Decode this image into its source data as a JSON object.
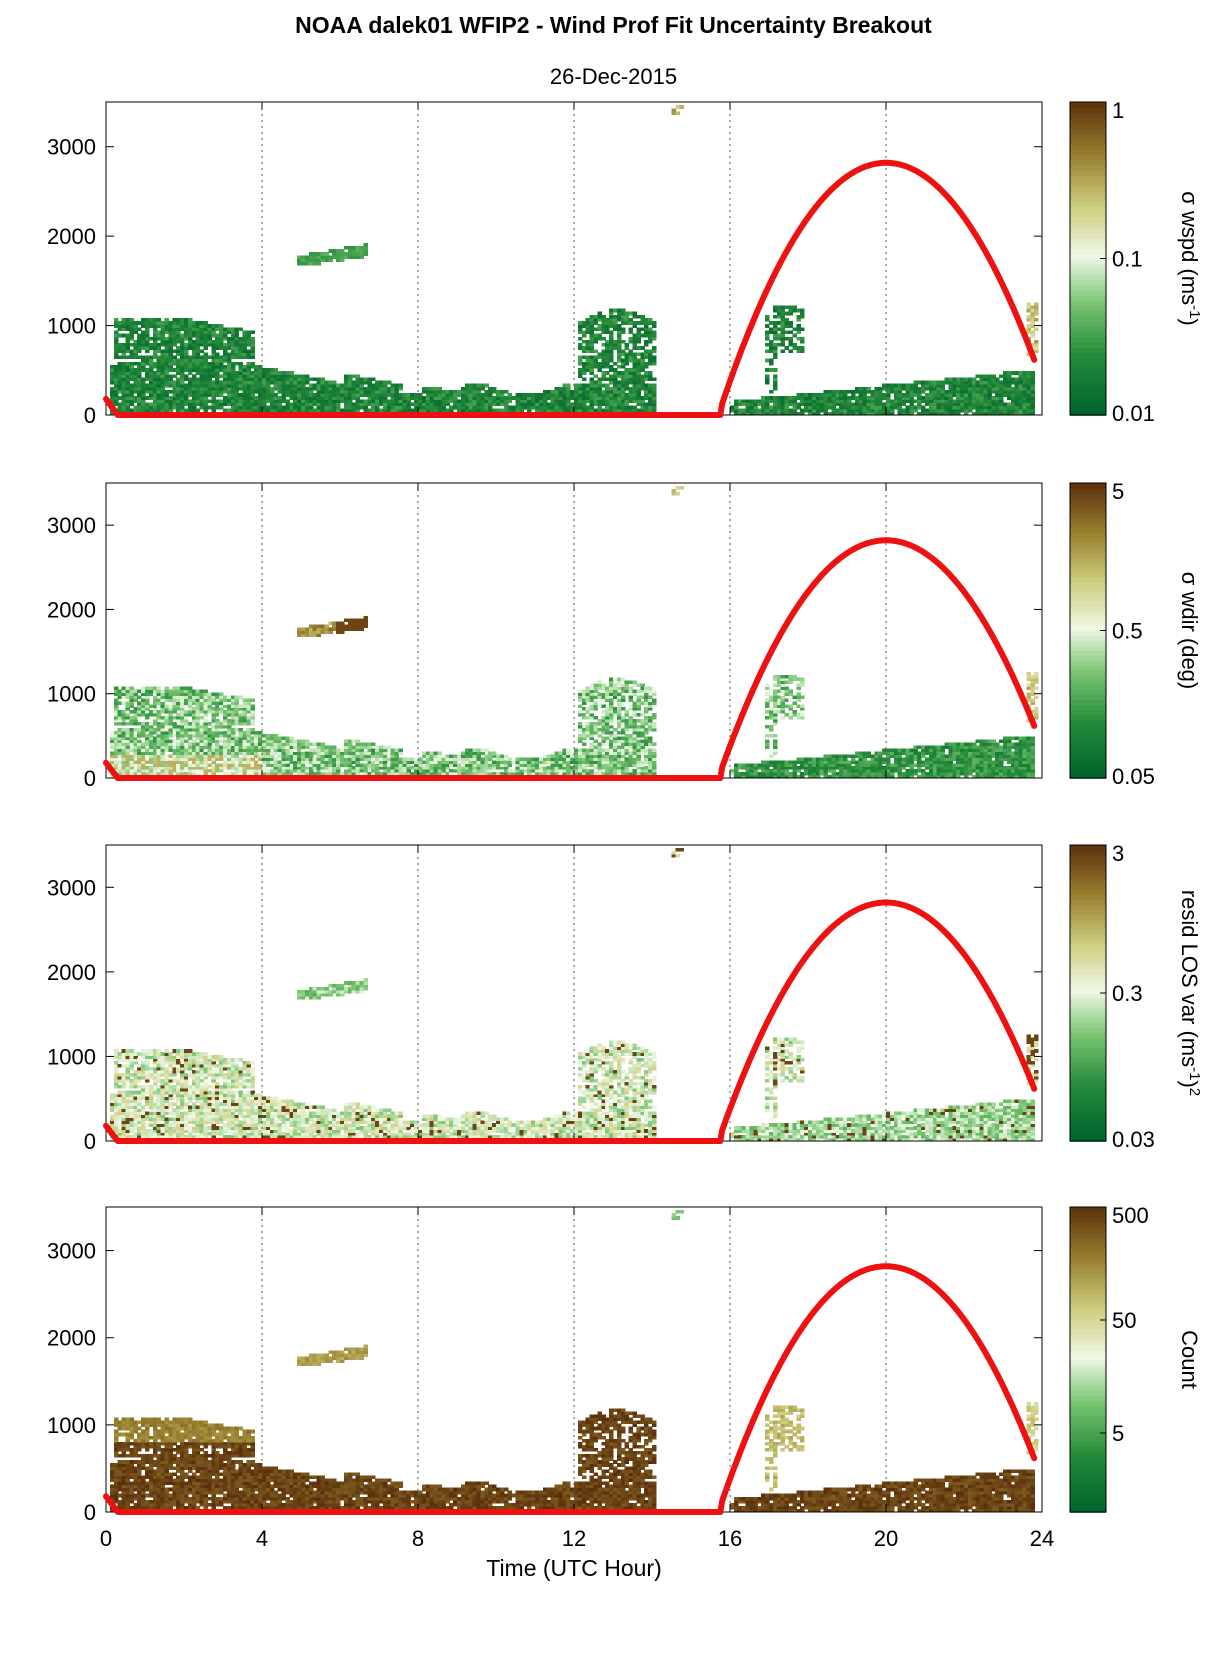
{
  "title": "NOAA dalek01 WFIP2 - Wind Prof Fit Uncertainty Breakout",
  "subtitle": "26-Dec-2015",
  "colors": {
    "curve": "#ee1111",
    "grid": "#555555",
    "background": "#ffffff"
  },
  "chart_data": [
    {
      "type": "heatmap",
      "panel": 1,
      "xlabel": "",
      "ylabel": "",
      "xlim": [
        0,
        24
      ],
      "ylim": [
        0,
        3500
      ],
      "yticks": [
        "0",
        "1000",
        "2000",
        "3000"
      ],
      "grid_x": [
        4,
        8,
        12,
        16,
        20
      ],
      "colorbar": {
        "label": "σ wspd (ms-1)",
        "label_parts": [
          "σ wspd (ms",
          "-1",
          ")"
        ],
        "scale": "log",
        "ticks": [
          "1",
          "0.1",
          "0.01"
        ],
        "range": [
          0.01,
          1
        ]
      },
      "curve": {
        "x": [
          0,
          0.3,
          15.8,
          16,
          17,
          18,
          19,
          20,
          21,
          22,
          23,
          23.8
        ],
        "y": [
          180,
          0,
          0,
          100,
          1250,
          2100,
          2630,
          2820,
          2630,
          2100,
          1250,
          550
        ]
      }
    },
    {
      "type": "heatmap",
      "panel": 2,
      "xlabel": "",
      "ylabel": "",
      "xlim": [
        0,
        24
      ],
      "ylim": [
        0,
        3500
      ],
      "yticks": [
        "0",
        "1000",
        "2000",
        "3000"
      ],
      "grid_x": [
        4,
        8,
        12,
        16,
        20
      ],
      "colorbar": {
        "label": "σ wdir (deg)",
        "label_parts": [
          "σ wdir (deg)"
        ],
        "scale": "log",
        "ticks": [
          "5",
          "0.5",
          "0.05"
        ],
        "range": [
          0.05,
          5
        ]
      },
      "curve": {
        "x": [
          0,
          0.3,
          15.8,
          16,
          17,
          18,
          19,
          20,
          21,
          22,
          23,
          23.8
        ],
        "y": [
          180,
          0,
          0,
          100,
          1250,
          2100,
          2630,
          2820,
          2630,
          2100,
          1250,
          550
        ]
      }
    },
    {
      "type": "heatmap",
      "panel": 3,
      "xlabel": "",
      "ylabel": "",
      "xlim": [
        0,
        24
      ],
      "ylim": [
        0,
        3500
      ],
      "yticks": [
        "0",
        "1000",
        "2000",
        "3000"
      ],
      "grid_x": [
        4,
        8,
        12,
        16,
        20
      ],
      "colorbar": {
        "label": "resid LOS var (ms-1)2",
        "label_parts": [
          "resid LOS var (ms",
          "-1",
          ")",
          "2"
        ],
        "scale": "log",
        "ticks": [
          "3",
          "0.3",
          "0.03"
        ],
        "range": [
          0.03,
          3
        ]
      },
      "curve": {
        "x": [
          0,
          0.3,
          15.8,
          16,
          17,
          18,
          19,
          20,
          21,
          22,
          23,
          23.8
        ],
        "y": [
          180,
          0,
          0,
          100,
          1250,
          2100,
          2630,
          2820,
          2630,
          2100,
          1250,
          550
        ]
      }
    },
    {
      "type": "heatmap",
      "panel": 4,
      "xlabel": "Time (UTC Hour)",
      "ylabel": "",
      "xlim": [
        0,
        24
      ],
      "ylim": [
        0,
        3500
      ],
      "xticks": [
        "0",
        "4",
        "8",
        "12",
        "16",
        "20",
        "24"
      ],
      "yticks": [
        "0",
        "1000",
        "2000",
        "3000"
      ],
      "grid_x": [
        4,
        8,
        12,
        16,
        20
      ],
      "colorbar": {
        "label": "Count",
        "label_parts": [
          "Count"
        ],
        "scale": "log",
        "ticks": [
          "500",
          "50",
          "5"
        ],
        "range": [
          1,
          500
        ]
      },
      "curve": {
        "x": [
          0,
          0.3,
          15.8,
          16,
          17,
          18,
          19,
          20,
          21,
          22,
          23,
          23.8
        ],
        "y": [
          180,
          0,
          0,
          100,
          1250,
          2100,
          2630,
          2820,
          2630,
          2100,
          1250,
          550
        ]
      }
    }
  ]
}
